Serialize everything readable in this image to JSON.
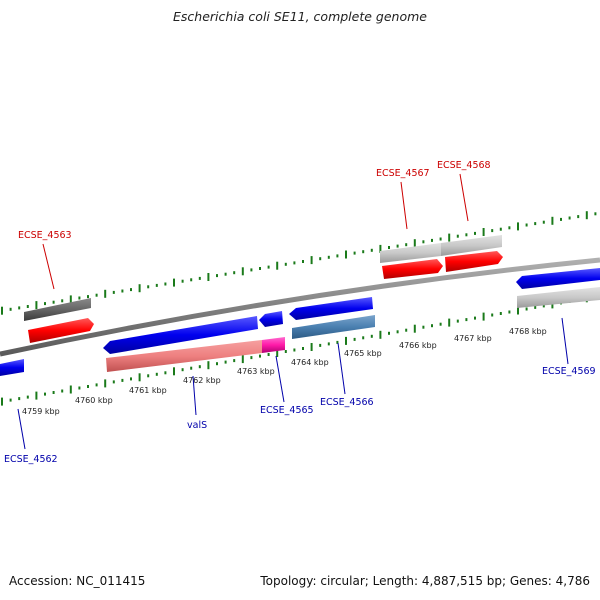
{
  "title": "Escherichia coli SE11, complete genome",
  "footer": {
    "accession": "Accession: NC_011415",
    "topology": "Topology: circular; Length: 4,887,515 bp; Genes: 4,786"
  },
  "colors": {
    "forward_gene": "#ff0000",
    "reverse_gene": "#0000ee",
    "forward_label": "#cc0000",
    "reverse_label": "#0000aa",
    "gc_skew_ticks": "#1a7a1a",
    "backbone": "#888888"
  },
  "kbp_labels": [
    "4759 kbp",
    "4760 kbp",
    "4761 kbp",
    "4762 kbp",
    "4763 kbp",
    "4764 kbp",
    "4765 kbp",
    "4766 kbp",
    "4767 kbp",
    "4768 kbp"
  ],
  "gene_labels": {
    "forward": [
      "ECSE_4563",
      "ECSE_4567",
      "ECSE_4568"
    ],
    "reverse": [
      "ECSE_4562",
      "valS",
      "ECSE_4565",
      "ECSE_4566",
      "ECSE_4569"
    ]
  }
}
